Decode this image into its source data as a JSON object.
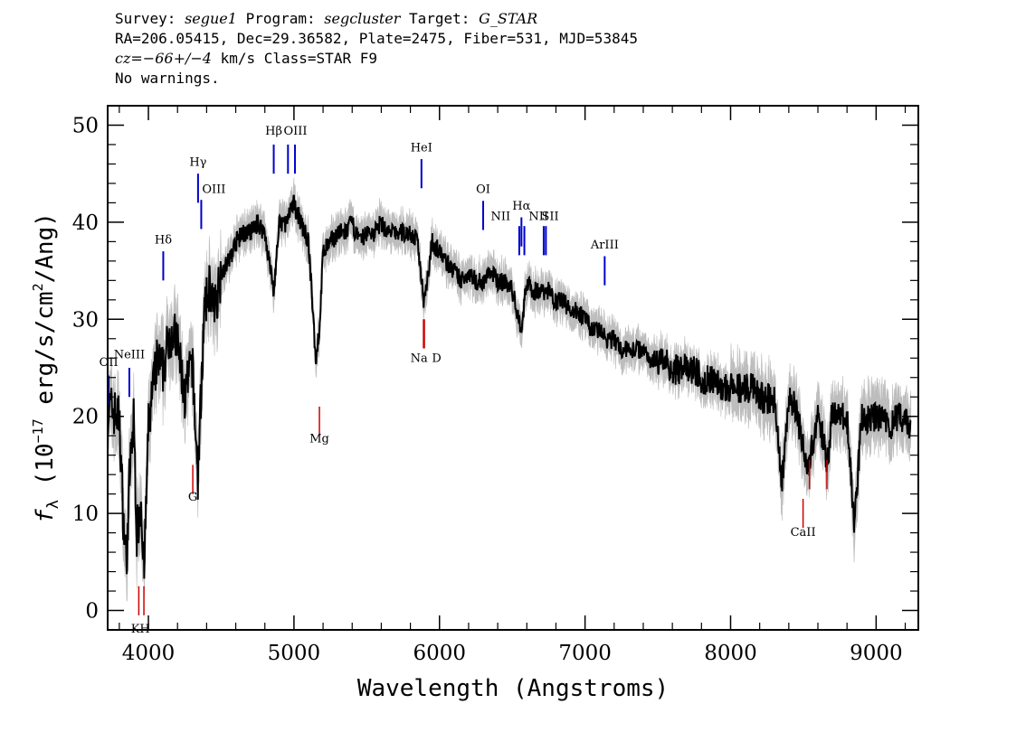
{
  "header": {
    "survey_label": "Survey:",
    "survey_value": "segue1",
    "program_label": "Program:",
    "program_value": "segcluster",
    "target_label": "Target:",
    "target_value": "G_STAR",
    "line2": "RA=206.05415, Dec=29.36582, Plate=2475, Fiber=531, MJD=53845",
    "cz_label": "cz=",
    "cz_value": "−66+/−4",
    "cz_rest": " km/s Class=STAR F9",
    "line4": "No warnings."
  },
  "colors": {
    "flux": "#000000",
    "error_band": "#bdbdbd",
    "emission": "#0000cc",
    "absorption": "#cc0000"
  },
  "chart_data": {
    "type": "line",
    "title": "",
    "xlabel": "Wavelength (Angstroms)",
    "ylabel_prefix": "f",
    "ylabel_sub": "λ",
    "ylabel_rest": " (10",
    "ylabel_exp": "−17",
    "ylabel_unit": " erg/s/cm",
    "ylabel_unit_exp": "2",
    "ylabel_end": "/Ang)",
    "xlim": [
      3720,
      9290
    ],
    "ylim": [
      -2,
      52
    ],
    "xticks": [
      4000,
      5000,
      6000,
      7000,
      8000,
      9000
    ],
    "yticks": [
      0,
      10,
      20,
      30,
      40,
      50
    ],
    "grid": false,
    "series": [
      {
        "role": "flux",
        "x": [
          3750,
          3800,
          3830,
          3850,
          3870,
          3900,
          3920,
          3950,
          3970,
          4000,
          4030,
          4060,
          4100,
          4150,
          4200,
          4250,
          4300,
          4340,
          4380,
          4420,
          4450,
          4500,
          4550,
          4600,
          4650,
          4700,
          4750,
          4800,
          4861,
          4900,
          4950,
          5000,
          5050,
          5100,
          5150,
          5175,
          5200,
          5250,
          5300,
          5350,
          5400,
          5450,
          5500,
          5550,
          5600,
          5650,
          5700,
          5750,
          5800,
          5850,
          5893,
          5950,
          6000,
          6050,
          6100,
          6150,
          6200,
          6250,
          6300,
          6350,
          6400,
          6450,
          6500,
          6563,
          6600,
          6650,
          6700,
          6750,
          6800,
          6850,
          6900,
          6950,
          7000,
          7050,
          7100,
          7150,
          7200,
          7250,
          7300,
          7350,
          7400,
          7450,
          7500,
          7550,
          7600,
          7650,
          7700,
          7750,
          7800,
          7850,
          7900,
          7950,
          8000,
          8050,
          8100,
          8150,
          8200,
          8250,
          8300,
          8350,
          8400,
          8450,
          8498,
          8542,
          8600,
          8662,
          8700,
          8750,
          8800,
          8850,
          8900,
          8950,
          9000,
          9050,
          9100,
          9150,
          9200,
          9240
        ],
        "y": [
          21,
          20,
          9,
          5,
          14,
          20,
          8,
          12,
          4,
          19,
          23,
          26,
          25,
          29,
          28,
          22,
          26,
          14,
          30,
          34,
          31,
          35,
          36,
          38,
          39,
          39,
          40,
          39,
          33,
          40,
          40,
          42,
          40,
          38,
          26,
          29,
          37,
          38,
          39,
          39,
          40,
          38,
          39,
          39,
          40,
          39,
          39,
          39,
          39,
          38,
          32,
          38,
          37,
          36,
          35,
          34,
          35,
          34,
          34,
          35,
          34,
          34,
          33,
          29,
          34,
          33,
          33,
          33,
          32,
          32,
          31,
          31,
          30,
          29,
          29,
          28,
          28,
          27,
          27,
          27,
          27,
          26,
          26,
          26,
          25,
          25,
          25,
          25,
          24,
          24,
          24,
          23,
          23,
          23,
          23,
          23,
          22,
          22,
          22,
          13,
          22,
          21,
          17,
          15,
          21,
          15,
          21,
          20,
          20,
          9,
          20,
          20,
          20,
          20,
          19,
          20,
          20,
          19
        ]
      }
    ],
    "emission_lines": [
      {
        "label": "OII",
        "x": 3727,
        "y_top": 24.2
      },
      {
        "label": "NeIII",
        "x": 3869,
        "y_top": 25.0
      },
      {
        "label": "Hδ",
        "x": 4102,
        "y_top": 37.0
      },
      {
        "label": "Hγ",
        "x": 4341,
        "y_top": 45.0
      },
      {
        "label": "OIII",
        "x": 4363,
        "y_top": 42.3
      },
      {
        "label": "Hβ",
        "x": 4861,
        "y_top": 48.0
      },
      {
        "label": "OIII",
        "x": 4959,
        "y_top": 48.0
      },
      {
        "label": "OIII",
        "x": 5007,
        "y_top": 48.0
      },
      {
        "label": "HeI",
        "x": 5876,
        "y_top": 46.5
      },
      {
        "label": "OI",
        "x": 6300,
        "y_top": 42.2
      },
      {
        "label": "NII",
        "x": 6548,
        "y_top": 39.6
      },
      {
        "label": "Hα",
        "x": 6563,
        "y_top": 40.5
      },
      {
        "label": "NII",
        "x": 6583,
        "y_top": 39.6
      },
      {
        "label": "SII",
        "x": 6716,
        "y_top": 39.6
      },
      {
        "label": "SII",
        "x": 6731,
        "y_top": 39.6
      },
      {
        "label": "ArIII",
        "x": 7135,
        "y_top": 36.5
      }
    ],
    "absorption_lines": [
      {
        "label": "K",
        "x": 3934,
        "y_top": 2.5
      },
      {
        "label": "H",
        "x": 3969,
        "y_top": 2.5
      },
      {
        "label": "G",
        "x": 4305,
        "y_top": 15.0
      },
      {
        "label": "Mg",
        "x": 5175,
        "y_top": 21.0
      },
      {
        "label": "Na",
        "x": 5890,
        "y_top": 30.0
      },
      {
        "label": "D",
        "x": 5896,
        "y_top": 30.0
      },
      {
        "label": "CaII",
        "x": 8498,
        "y_top": 11.5
      },
      {
        "label": "CaII",
        "x": 8542,
        "y_top": 15.5
      },
      {
        "label": "CaII",
        "x": 8662,
        "y_top": 15.5
      }
    ],
    "visible_line_labels": {
      "emission": [
        {
          "text": "OII",
          "x": 3727,
          "y": 25.2
        },
        {
          "text": "NeIII",
          "x": 3869,
          "y": 26.0
        },
        {
          "text": "Hδ",
          "x": 4102,
          "y": 37.8
        },
        {
          "text": "Hγ",
          "x": 4341,
          "y": 45.8
        },
        {
          "text": "OIII",
          "x": 4450,
          "y": 43.0
        },
        {
          "text": "Hβ",
          "x": 4861,
          "y": 49.0
        },
        {
          "text": "OIII",
          "x": 5010,
          "y": 49.0
        },
        {
          "text": "HeI",
          "x": 5876,
          "y": 47.3
        },
        {
          "text": "OI",
          "x": 6300,
          "y": 43.0
        },
        {
          "text": "NII",
          "x": 6420,
          "y": 40.2
        },
        {
          "text": "Hα",
          "x": 6563,
          "y": 41.3
        },
        {
          "text": "NII",
          "x": 6680,
          "y": 40.2
        },
        {
          "text": "SII",
          "x": 6760,
          "y": 40.2
        },
        {
          "text": "ArIII",
          "x": 7135,
          "y": 37.3
        }
      ],
      "absorption": [
        {
          "text": "K",
          "x": 3910,
          "y": -2.3
        },
        {
          "text": "H",
          "x": 3975,
          "y": -2.3
        },
        {
          "text": "G",
          "x": 4305,
          "y": 11.3
        },
        {
          "text": "Mg",
          "x": 5175,
          "y": 17.3
        },
        {
          "text": "Na",
          "x": 5860,
          "y": 25.6
        },
        {
          "text": "D",
          "x": 5980,
          "y": 25.6
        },
        {
          "text": "CaII",
          "x": 8498,
          "y": 7.7
        }
      ]
    }
  }
}
